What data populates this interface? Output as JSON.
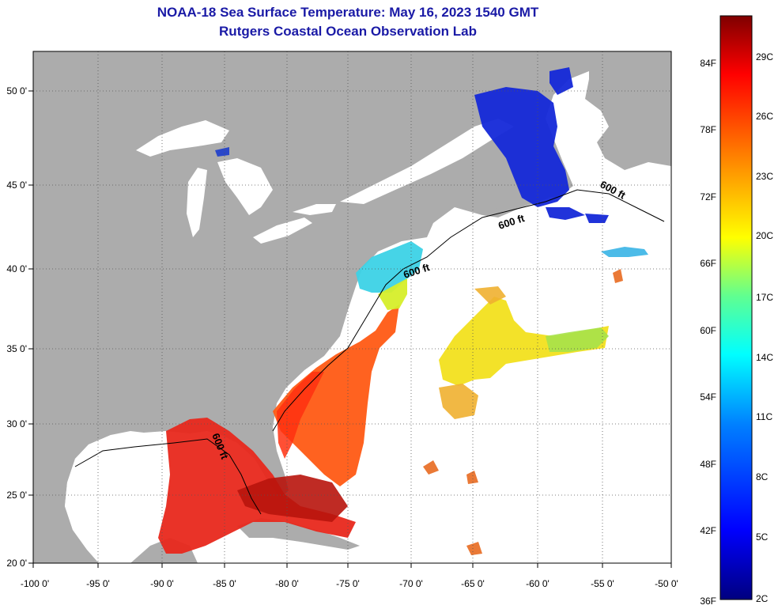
{
  "title": "NOAA-18 Sea Surface Temperature:  May 16, 2023 1540 GMT",
  "subtitle": "Rutgers Coastal Ocean Observation Lab",
  "lat_ticks": [
    "50 0'",
    "45 0'",
    "40 0'",
    "35 0'",
    "30 0'",
    "25 0'",
    "20 0'"
  ],
  "lon_ticks": [
    "-100 0'",
    "-95 0'",
    "-90 0'",
    "-85 0'",
    "-80 0'",
    "-75 0'",
    "-70 0'",
    "-65 0'",
    "-60 0'",
    "-55 0'",
    "-50 0'"
  ],
  "contour_label": "600 ft",
  "colorbar": {
    "fahrenheit": [
      "84F",
      "78F",
      "72F",
      "66F",
      "60F",
      "54F",
      "48F",
      "42F",
      "36F"
    ],
    "celsius": [
      "29C",
      "26C",
      "23C",
      "20C",
      "17C",
      "14C",
      "11C",
      "8C",
      "5C",
      "2C"
    ]
  },
  "colors": {
    "land": "#acacac",
    "ocean": "#ffffff",
    "title": "#1a1aa6"
  }
}
